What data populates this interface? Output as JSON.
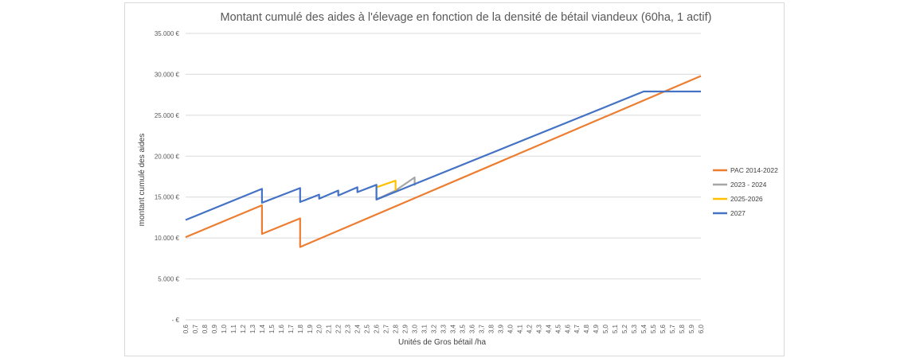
{
  "chart_data": {
    "type": "line",
    "title": "Montant cumulé des aides à l'élevage en fonction de la densité de bétail viandeux (60ha, 1 actif)",
    "xlabel": "Unités de Gros bétail /ha",
    "ylabel": "montant  cumulé des aides",
    "xlim": [
      0.6,
      6.0
    ],
    "ylim": [
      0,
      35000
    ],
    "x_tick_labels": [
      "0,6",
      "0,7",
      "0,8",
      "0,9",
      "1,0",
      "1,1",
      "1,2",
      "1,3",
      "1,4",
      "1,5",
      "1,6",
      "1,7",
      "1,8",
      "1,9",
      "2,0",
      "2,1",
      "2,2",
      "2,3",
      "2,4",
      "2,5",
      "2,6",
      "2,7",
      "2,8",
      "2,9",
      "3,0",
      "3,1",
      "3,2",
      "3,3",
      "3,4",
      "3,5",
      "3,6",
      "3,7",
      "3,8",
      "3,9",
      "4,0",
      "4,1",
      "4,2",
      "4,3",
      "4,4",
      "4,5",
      "4,6",
      "4,7",
      "4,8",
      "4,9",
      "5,0",
      "5,1",
      "5,2",
      "5,3",
      "5,4",
      "5,5",
      "5,6",
      "5,7",
      "5,8",
      "5,9",
      "6,0"
    ],
    "y_ticks": [
      0,
      5000,
      10000,
      15000,
      20000,
      25000,
      30000,
      35000
    ],
    "y_tick_labels": [
      "-   €",
      "5.000 €",
      "10.000 €",
      "15.000 €",
      "20.000 €",
      "25.000 €",
      "30.000 €",
      "35.000 €"
    ],
    "grid": true,
    "legend_position": "right",
    "series": [
      {
        "name": "PAC 2014-2022",
        "color": "#ED7D31",
        "points": [
          [
            0.6,
            10100
          ],
          [
            1.4,
            14000
          ],
          [
            1.4,
            10500
          ],
          [
            1.8,
            12400
          ],
          [
            1.8,
            8900
          ],
          [
            6.0,
            29800
          ]
        ]
      },
      {
        "name": "2023 - 2024",
        "color": "#A5A5A5",
        "points": [
          [
            2.6,
            16500
          ],
          [
            2.6,
            14700
          ],
          [
            2.8,
            15800
          ],
          [
            3.0,
            17400
          ],
          [
            3.0,
            16400
          ]
        ]
      },
      {
        "name": "2025-2026",
        "color": "#FFC000",
        "points": [
          [
            2.6,
            16200
          ],
          [
            2.8,
            17000
          ],
          [
            2.8,
            15800
          ]
        ]
      },
      {
        "name": "2027",
        "color": "#4472C4",
        "points": [
          [
            0.6,
            12200
          ],
          [
            1.4,
            16000
          ],
          [
            1.4,
            14300
          ],
          [
            1.8,
            16100
          ],
          [
            1.8,
            14400
          ],
          [
            2.0,
            15300
          ],
          [
            2.0,
            14800
          ],
          [
            2.2,
            15800
          ],
          [
            2.2,
            15200
          ],
          [
            2.4,
            16200
          ],
          [
            2.4,
            15600
          ],
          [
            2.6,
            16500
          ],
          [
            2.6,
            14700
          ],
          [
            5.4,
            27900
          ],
          [
            6.0,
            27900
          ]
        ]
      }
    ]
  }
}
